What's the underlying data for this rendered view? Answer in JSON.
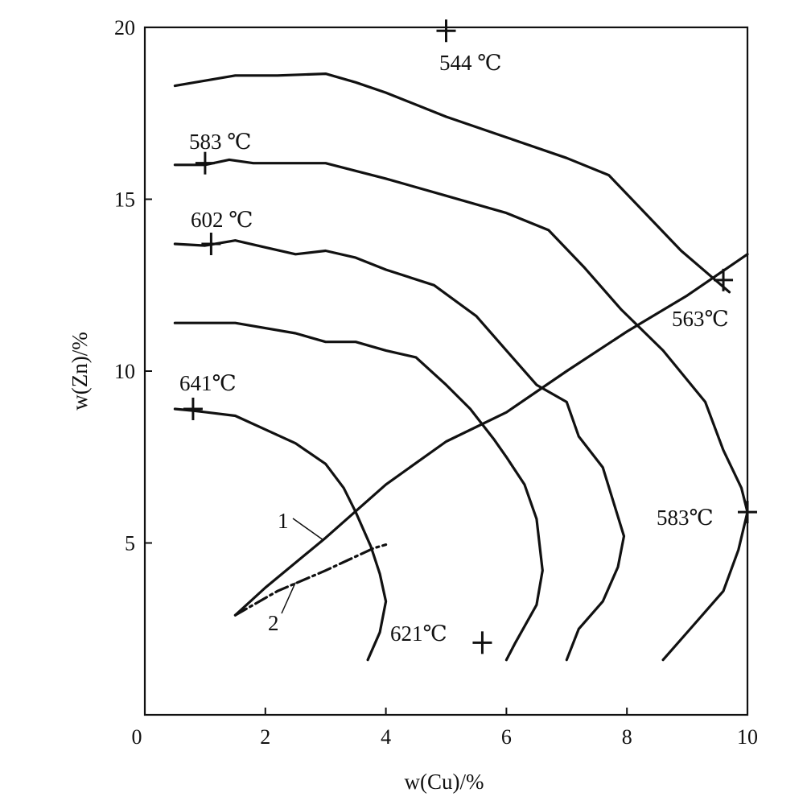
{
  "chart_data": {
    "type": "line",
    "xlabel": "w(Cu)/%",
    "ylabel": "w(Zn)/%",
    "xlim": [
      0,
      10
    ],
    "ylim": [
      0,
      20
    ],
    "x_ticks": [
      "0",
      "2",
      "4",
      "6",
      "8",
      "10"
    ],
    "y_ticks": [
      "5",
      "10",
      "15",
      "20"
    ],
    "grid": false,
    "series": [
      {
        "points": [
          [
            0.5,
            18.3
          ],
          [
            1.0,
            18.45
          ],
          [
            1.5,
            18.6
          ],
          [
            2.2,
            18.6
          ],
          [
            3.0,
            18.65
          ],
          [
            3.5,
            18.4
          ],
          [
            4.0,
            18.1
          ],
          [
            5.0,
            17.4
          ],
          [
            6.0,
            16.8
          ],
          [
            7.0,
            16.2
          ],
          [
            7.7,
            15.7
          ],
          [
            8.3,
            14.6
          ],
          [
            8.9,
            13.5
          ],
          [
            9.3,
            12.9
          ],
          [
            9.7,
            12.3
          ]
        ]
      },
      {
        "points": [
          [
            0.5,
            16.0
          ],
          [
            1.0,
            16.0
          ],
          [
            1.4,
            16.15
          ],
          [
            1.8,
            16.05
          ],
          [
            3.0,
            16.05
          ],
          [
            4.0,
            15.6
          ],
          [
            5.0,
            15.1
          ],
          [
            6.0,
            14.6
          ],
          [
            6.7,
            14.1
          ],
          [
            7.3,
            13.0
          ],
          [
            7.9,
            11.8
          ],
          [
            8.6,
            10.6
          ],
          [
            9.3,
            9.1
          ],
          [
            9.6,
            7.7
          ],
          [
            9.9,
            6.6
          ],
          [
            10.0,
            5.9
          ],
          [
            9.85,
            4.8
          ],
          [
            9.6,
            3.6
          ],
          [
            9.1,
            2.6
          ],
          [
            8.6,
            1.6
          ]
        ]
      },
      {
        "points": [
          [
            0.5,
            13.7
          ],
          [
            1.0,
            13.65
          ],
          [
            1.5,
            13.8
          ],
          [
            2.0,
            13.6
          ],
          [
            2.5,
            13.4
          ],
          [
            3.0,
            13.5
          ],
          [
            3.5,
            13.3
          ],
          [
            4.0,
            12.95
          ],
          [
            4.8,
            12.5
          ],
          [
            5.5,
            11.6
          ],
          [
            6.0,
            10.6
          ],
          [
            6.5,
            9.6
          ],
          [
            7.0,
            9.1
          ],
          [
            7.2,
            8.1
          ],
          [
            7.6,
            7.2
          ],
          [
            7.95,
            5.2
          ],
          [
            7.85,
            4.3
          ],
          [
            7.6,
            3.3
          ],
          [
            7.2,
            2.5
          ],
          [
            7.0,
            1.6
          ]
        ]
      },
      {
        "points": [
          [
            0.5,
            11.4
          ],
          [
            1.5,
            11.4
          ],
          [
            2.5,
            11.1
          ],
          [
            3.0,
            10.85
          ],
          [
            3.5,
            10.85
          ],
          [
            4.0,
            10.6
          ],
          [
            4.5,
            10.4
          ],
          [
            5.0,
            9.6
          ],
          [
            5.4,
            8.9
          ],
          [
            5.8,
            8.0
          ],
          [
            6.0,
            7.5
          ],
          [
            6.3,
            6.7
          ],
          [
            6.5,
            5.7
          ],
          [
            6.6,
            4.2
          ],
          [
            6.5,
            3.2
          ],
          [
            6.15,
            2.1
          ],
          [
            6.0,
            1.6
          ]
        ]
      },
      {
        "points": [
          [
            0.5,
            8.9
          ],
          [
            0.8,
            8.85
          ],
          [
            1.5,
            8.7
          ],
          [
            2.0,
            8.3
          ],
          [
            2.5,
            7.9
          ],
          [
            3.0,
            7.3
          ],
          [
            3.3,
            6.6
          ],
          [
            3.5,
            5.9
          ],
          [
            3.75,
            4.9
          ],
          [
            3.9,
            4.1
          ],
          [
            4.0,
            3.3
          ],
          [
            3.9,
            2.4
          ],
          [
            3.7,
            1.6
          ]
        ]
      }
    ],
    "line_1": [
      [
        1.5,
        2.9
      ],
      [
        2.0,
        3.7
      ],
      [
        3.0,
        5.15
      ],
      [
        4.0,
        6.7
      ],
      [
        5.0,
        7.95
      ],
      [
        6.0,
        8.8
      ],
      [
        7.0,
        10.0
      ],
      [
        8.0,
        11.15
      ],
      [
        9.0,
        12.2
      ],
      [
        10.0,
        13.4
      ]
    ],
    "line_2": [
      [
        1.5,
        2.9
      ],
      [
        2.2,
        3.6
      ],
      [
        3.0,
        4.2
      ],
      [
        3.8,
        4.85
      ],
      [
        4.0,
        4.95
      ]
    ],
    "markers": [
      {
        "x": 5.0,
        "y": 19.9,
        "label": "544 ℃"
      },
      {
        "x": 1.0,
        "y": 16.05,
        "label": "583 ℃"
      },
      {
        "x": 1.1,
        "y": 13.7,
        "label": "602 ℃"
      },
      {
        "x": 0.8,
        "y": 8.9,
        "label": "641℃"
      },
      {
        "x": 9.6,
        "y": 12.65,
        "label": "563℃"
      },
      {
        "x": 10.0,
        "y": 5.9,
        "label": "583℃"
      },
      {
        "x": 5.6,
        "y": 2.1,
        "label": "621℃"
      }
    ],
    "line_labels": [
      "1",
      "2"
    ]
  }
}
